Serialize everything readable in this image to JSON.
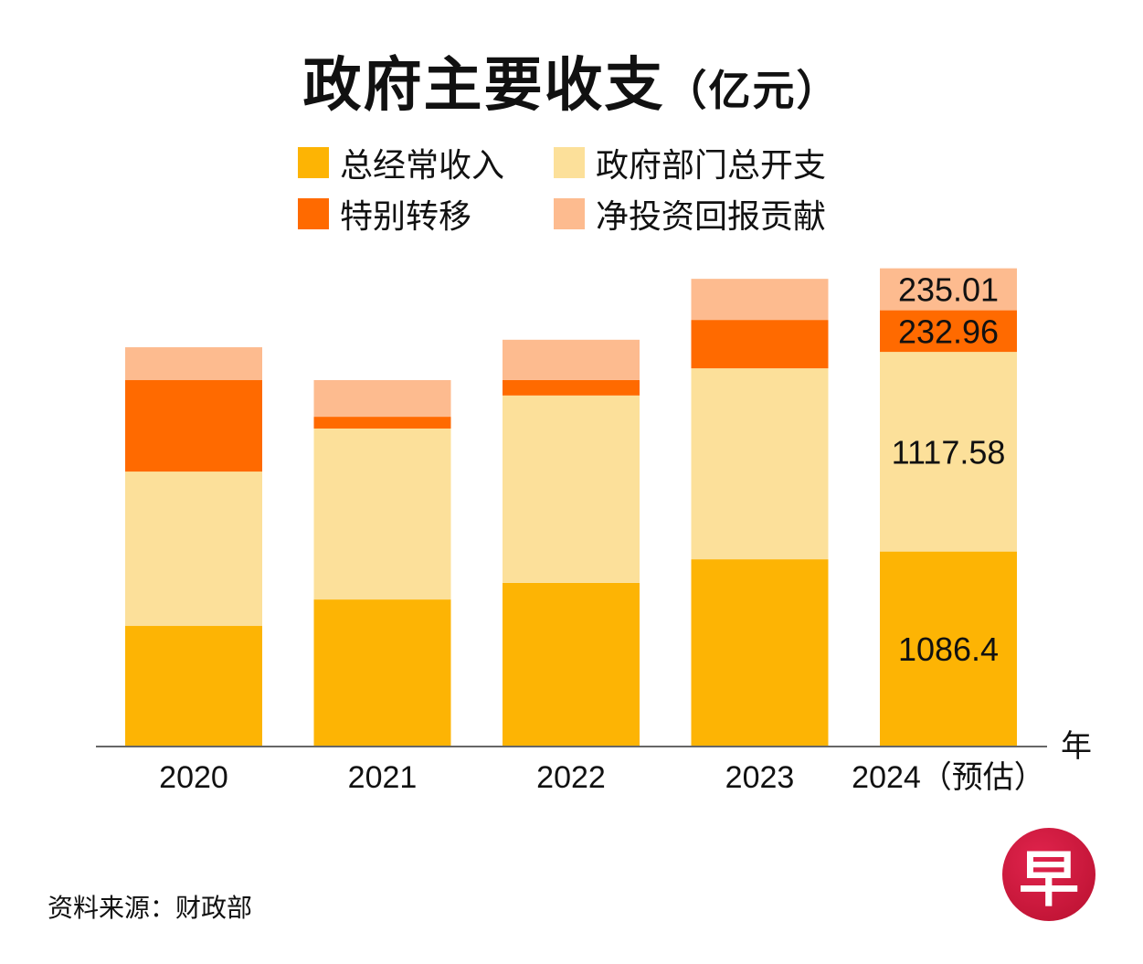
{
  "title": "政府主要收支",
  "title_unit": "（亿元）",
  "source": "资料来源：财政部",
  "logo_char": "早",
  "colors": {
    "total_operating_revenue": "#FDB404",
    "ministry_expenditure": "#FCE09A",
    "special_transfers": "#FF6A00",
    "nirc": "#FDBB8F"
  },
  "chart_data": {
    "type": "bar",
    "stacked": true,
    "title": "政府主要收支（亿元）",
    "xlabel": "年",
    "ylabel": "",
    "categories": [
      "2020",
      "2021",
      "2022",
      "2023",
      "2024（预估）"
    ],
    "series": [
      {
        "name": "总经常收入",
        "key": "total_operating_revenue",
        "values": [
          670,
          818,
          911,
          1043,
          1086.4
        ]
      },
      {
        "name": "政府部门总开支",
        "key": "ministry_expenditure",
        "values": [
          864,
          957,
          1049,
          1069,
          1117.58
        ]
      },
      {
        "name": "特别转移",
        "key": "special_transfers",
        "values": [
          512,
          66,
          87,
          271,
          232.96
        ]
      },
      {
        "name": "净投资回报贡献",
        "key": "nirc",
        "values": [
          184,
          205,
          225,
          230,
          235.01
        ]
      }
    ],
    "data_labels": {
      "category": "2024（预估）",
      "values": [
        "1086.4",
        "1117.58",
        "232.96",
        "235.01"
      ]
    },
    "legend": [
      "总经常收入",
      "政府部门总开支",
      "特别转移",
      "净投资回报贡献"
    ],
    "legend_position": "top",
    "grid": false,
    "y_axis_visible": false
  }
}
